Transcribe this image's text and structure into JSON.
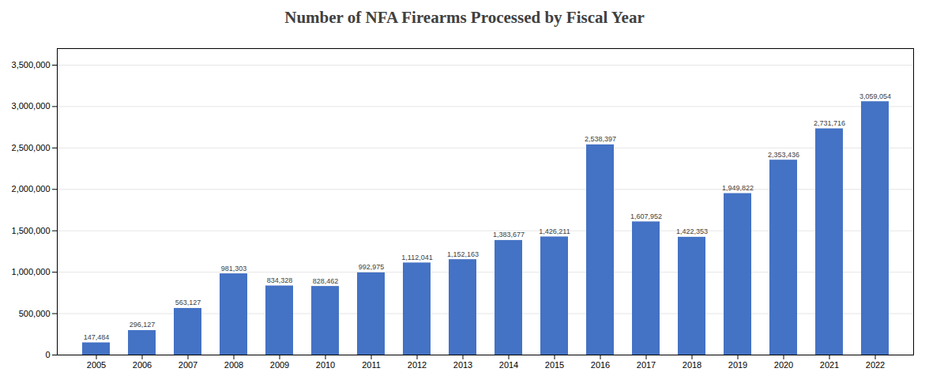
{
  "chart_data": {
    "type": "bar",
    "title": "Number of NFA Firearms Processed by Fiscal Year",
    "categories": [
      "2005",
      "2006",
      "2007",
      "2008",
      "2009",
      "2010",
      "2011",
      "2012",
      "2013",
      "2014",
      "2015",
      "2016",
      "2017",
      "2018",
      "2019",
      "2020",
      "2021",
      "2022"
    ],
    "values": [
      147484,
      296127,
      563127,
      981303,
      834328,
      828462,
      992975,
      1112041,
      1152163,
      1383677,
      1426211,
      2538397,
      1607952,
      1422353,
      1949822,
      2353436,
      2731716,
      3059054
    ],
    "value_labels": [
      "147,484",
      "296,127",
      "563,127",
      "981,303",
      "834,328",
      "828,462",
      "992,975",
      "1,112,041",
      "1,152,163",
      "1,383,677",
      "1,426,211",
      "2,538,397",
      "1,607,952",
      "1,422,353",
      "1,949,822",
      "2,353,436",
      "2,731,716",
      "3,059,054"
    ],
    "color": "#4472C4",
    "ylim": [
      0,
      3700000
    ],
    "yticks": [
      0,
      {
        "value": 500000,
        "label": "500,000"
      },
      {
        "value": 1000000,
        "label": "1,000,000"
      },
      {
        "value": 1500000,
        "label": "1,500,000"
      },
      {
        "value": 2000000,
        "label": "2,000,000"
      },
      {
        "value": 2500000,
        "label": "2,500,000"
      },
      {
        "value": 3000000,
        "label": "3,000,000"
      },
      {
        "value": 3500000,
        "label": "3,500,000"
      }
    ],
    "grid": true,
    "data_labels": true
  }
}
